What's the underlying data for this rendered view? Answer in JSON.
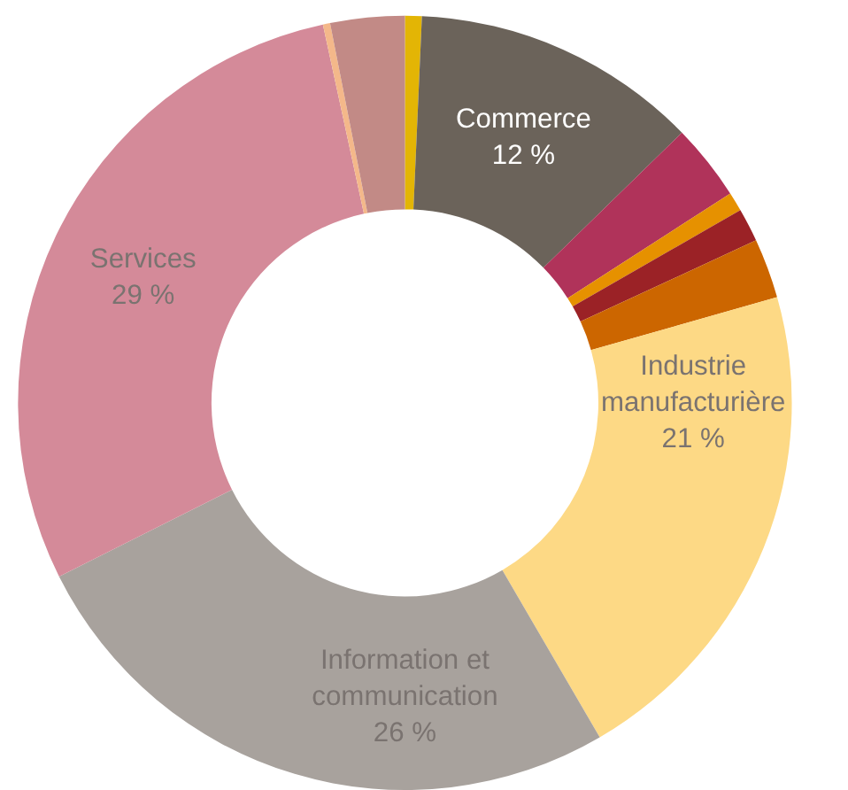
{
  "chart_data": {
    "type": "donut",
    "categories": [
      null,
      "Commerce",
      null,
      null,
      null,
      null,
      "Industrie\nmanufacturière",
      "Information et\ncommunication",
      "Services",
      null,
      null
    ],
    "values": [
      0.7,
      12,
      3.2,
      0.8,
      1.4,
      2.5,
      21,
      26,
      29,
      0.3,
      3.1
    ],
    "value_labels": [
      null,
      "12 %",
      null,
      null,
      null,
      null,
      "21 %",
      "26 %",
      "29 %",
      null,
      null
    ],
    "colors": [
      "#e3b505",
      "#6b635a",
      "#b0335a",
      "#e69100",
      "#9b2226",
      "#cc6600",
      "#fdd985",
      "#a8a29d",
      "#d48a99",
      "#f4b88a",
      "#c28a86"
    ],
    "legend": false
  }
}
